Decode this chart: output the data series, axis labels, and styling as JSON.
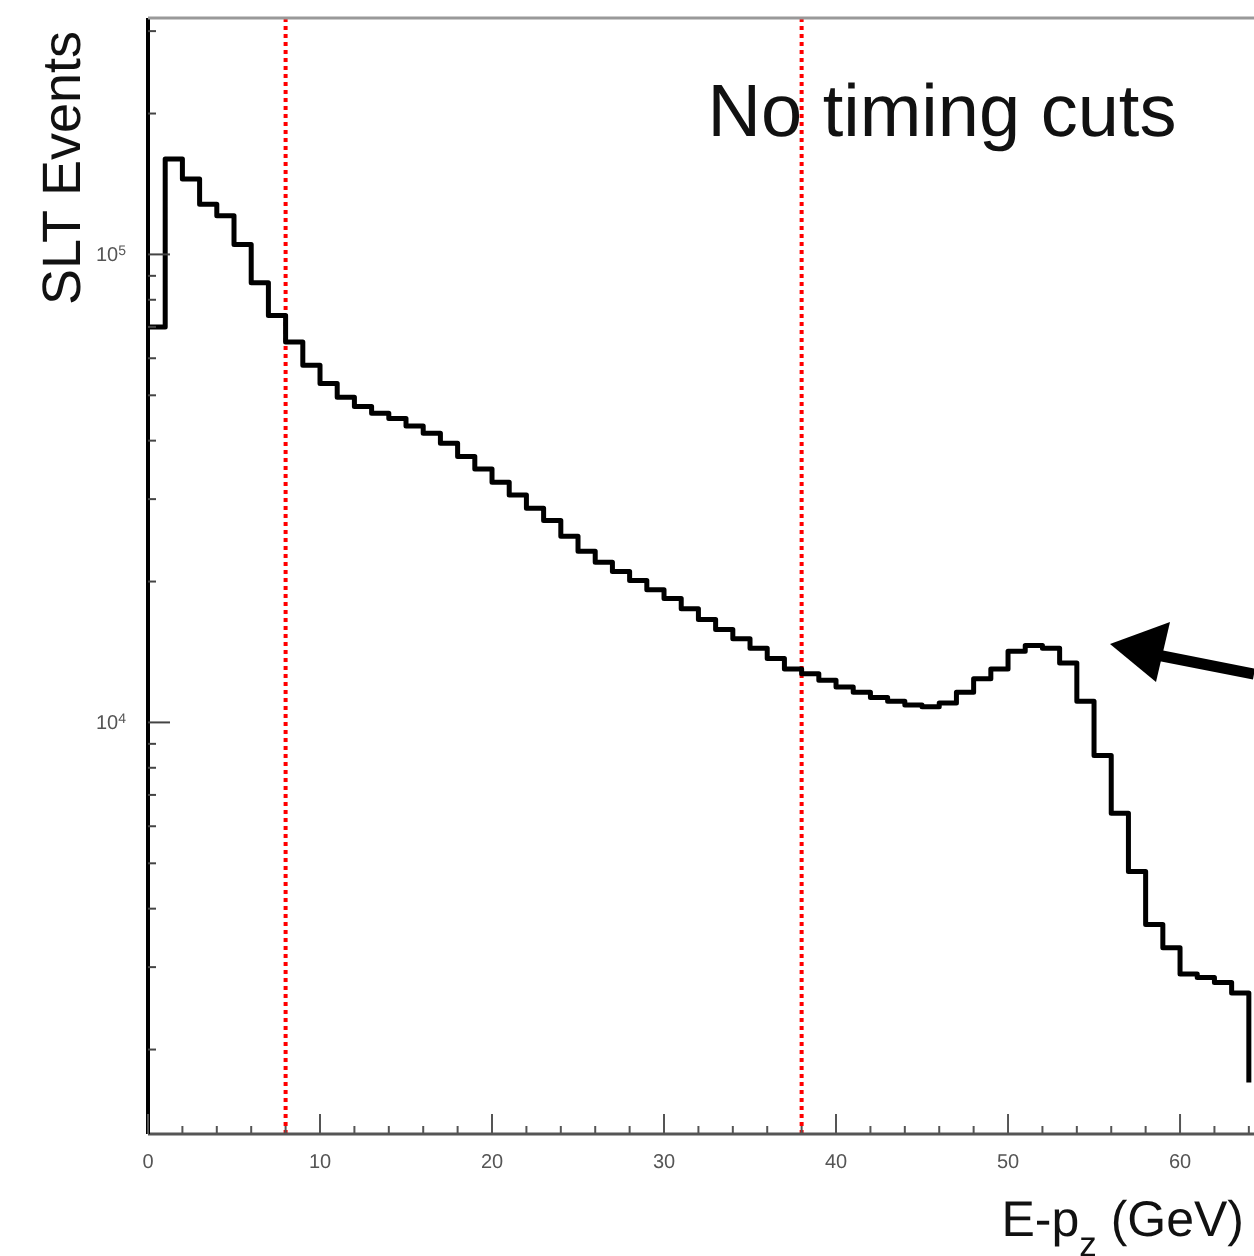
{
  "chart_data": {
    "type": "step",
    "xlabel": "E-p$_{z}$ (GeV)",
    "ylabel": "SLT Events",
    "annotations": [
      "No timing cuts"
    ],
    "color": "#000000",
    "log": true,
    "x": [
      0,
      1,
      2,
      3,
      4,
      5,
      6,
      7,
      8,
      9,
      10,
      11,
      12,
      13,
      14,
      15,
      16,
      17,
      18,
      19,
      20,
      21,
      22,
      23,
      24,
      25,
      26,
      27,
      28,
      29,
      30,
      31,
      32,
      33,
      34,
      35,
      36,
      37,
      38,
      39,
      40,
      41,
      42,
      43,
      44,
      45,
      46,
      47,
      48,
      49,
      50,
      51,
      52,
      53,
      54,
      55,
      56,
      57,
      58,
      59,
      60,
      61,
      62,
      63,
      64
    ],
    "values": [
      70000,
      160000,
      145000,
      128000,
      121000,
      105000,
      87000,
      74000,
      65000,
      58000,
      53000,
      49500,
      47300,
      45800,
      44600,
      43000,
      41500,
      39500,
      37000,
      34800,
      32600,
      30600,
      28700,
      27000,
      25000,
      23200,
      22000,
      21000,
      20100,
      19200,
      18400,
      17500,
      16600,
      15800,
      15100,
      14400,
      13700,
      13000,
      12700,
      12300,
      11900,
      11600,
      11300,
      11100,
      10900,
      10800,
      11000,
      11600,
      12400,
      13000,
      14200,
      14600,
      14400,
      13400,
      11100,
      8500,
      6400,
      4800,
      3700,
      3300,
      2900,
      2850,
      2780,
      2640,
      1700
    ],
    "xlim": [
      0,
      64.3
    ],
    "xticks": [
      0,
      {
        "value": 2,
        "label": null
      },
      {
        "value": 4,
        "label": null
      },
      {
        "value": 6,
        "label": null
      },
      {
        "value": 8,
        "label": null
      },
      10,
      {
        "value": 12,
        "label": null
      },
      {
        "value": 14,
        "label": null
      },
      {
        "value": 16,
        "label": null
      },
      {
        "value": 18,
        "label": null
      },
      20,
      {
        "value": 22,
        "label": null
      },
      {
        "value": 24,
        "label": null
      },
      {
        "value": 26,
        "label": null
      },
      {
        "value": 28,
        "label": null
      },
      30,
      {
        "value": 32,
        "label": null
      },
      {
        "value": 34,
        "label": null
      },
      {
        "value": 36,
        "label": null
      },
      {
        "value": 38,
        "label": null
      },
      40,
      {
        "value": 42,
        "label": null
      },
      {
        "value": 44,
        "label": null
      },
      {
        "value": 46,
        "label": null
      },
      {
        "value": 48,
        "label": null
      },
      50,
      {
        "value": 52,
        "label": null
      },
      {
        "value": 54,
        "label": null
      },
      {
        "value": 56,
        "label": null
      },
      {
        "value": 58,
        "label": null
      },
      60,
      {
        "value": 62,
        "label": null
      },
      {
        "value": 64,
        "label": null
      }
    ],
    "ylim": [
      1320,
      320000
    ],
    "yticks": [
      {
        "value": 2000,
        "label": null
      },
      {
        "value": 3000,
        "label": null
      },
      {
        "value": 4000,
        "label": null
      },
      {
        "value": 5000,
        "label": null
      },
      {
        "value": 6000,
        "label": null
      },
      {
        "value": 7000,
        "label": null
      },
      {
        "value": 8000,
        "label": null
      },
      {
        "value": 9000,
        "label": null
      },
      {
        "value": 10000,
        "label": "10$^{4}$"
      },
      {
        "value": 20000,
        "label": null
      },
      {
        "value": 30000,
        "label": null
      },
      {
        "value": 40000,
        "label": null
      },
      {
        "value": 50000,
        "label": null
      },
      {
        "value": 60000,
        "label": null
      },
      {
        "value": 70000,
        "label": null
      },
      {
        "value": 80000,
        "label": null
      },
      {
        "value": 90000,
        "label": null
      },
      {
        "value": 100000,
        "label": "10$^{5}$"
      },
      {
        "value": 200000,
        "label": null
      },
      {
        "value": 300000,
        "label": null
      }
    ],
    "ref_lines": [
      {
        "axis": "x",
        "value": 8,
        "color": "#ff0000",
        "line_style": "dotted"
      },
      {
        "axis": "x",
        "value": 38,
        "color": "#ff0000",
        "line_style": "dotted"
      }
    ]
  }
}
